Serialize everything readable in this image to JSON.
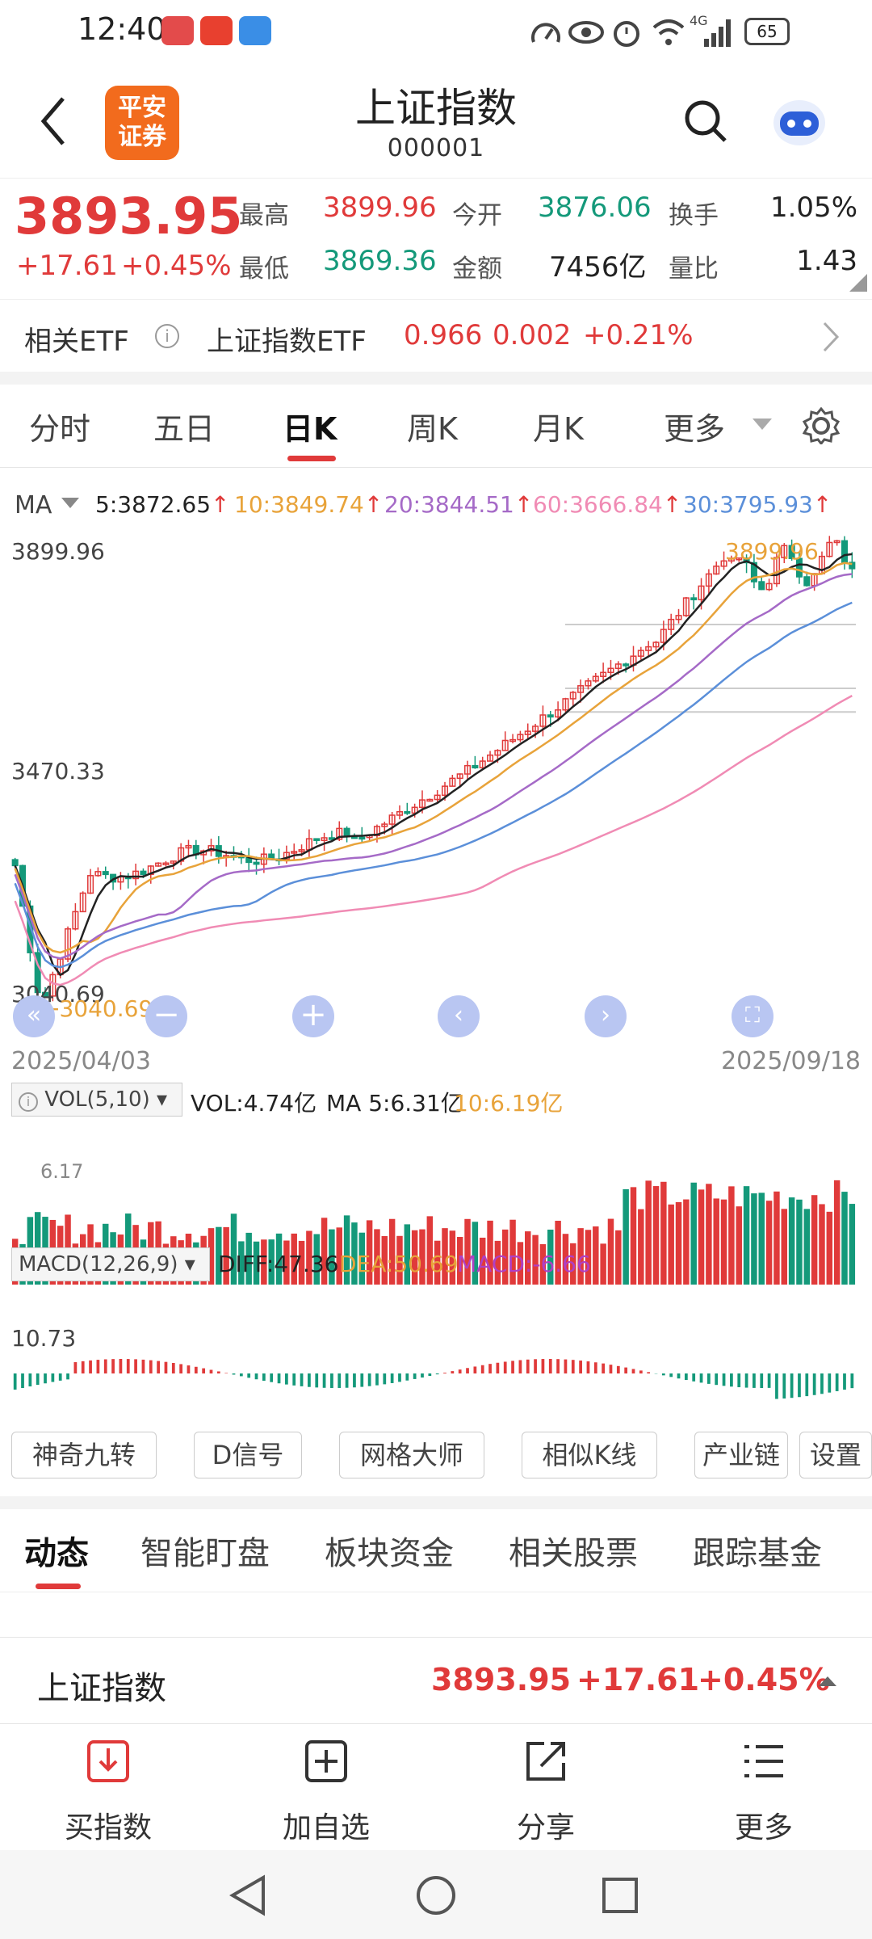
{
  "status": {
    "time": "12:40",
    "battery": "65",
    "network": "4G"
  },
  "header": {
    "title": "上证指数",
    "code": "000001",
    "logo_text": "平安\n证券",
    "logo_color": "#f26b1d"
  },
  "quote": {
    "price": "3893.95",
    "change": "+17.61",
    "change_pct": "+0.45%",
    "high_label": "最高",
    "high": "3899.96",
    "open_label": "今开",
    "open": "3876.06",
    "turnover_label": "换手",
    "turnover": "1.05%",
    "low_label": "最低",
    "low": "3869.36",
    "amount_label": "金额",
    "amount": "7456亿",
    "volratio_label": "量比",
    "volratio": "1.43"
  },
  "etf": {
    "label": "相关ETF",
    "name": "上证指数ETF",
    "price": "0.966",
    "change": "0.002",
    "pct": "+0.21%"
  },
  "period_tabs": [
    "分时",
    "五日",
    "日K",
    "周K",
    "月K",
    "更多"
  ],
  "active_tab": "日K",
  "ma": {
    "label": "MA",
    "ma5": "5:3872.65",
    "ma10": "10:3849.74",
    "ma20": "20:3844.51",
    "ma60": "60:3666.84",
    "ma30": "30:3795.93",
    "colors": {
      "ma5": "#222222",
      "ma10": "#e8a33a",
      "ma20": "#a56ac7",
      "ma60": "#f08bb4",
      "ma30": "#5b8fd9"
    }
  },
  "chart_data": {
    "type": "candlestick",
    "x_range": [
      "2025/04/03",
      "2025/09/18"
    ],
    "high_label": "3899.96",
    "mid_label": "3470.33",
    "low_label": "3040.69",
    "high_marker": "3899.96",
    "low_marker": "3040.69",
    "ylim": [
      3040.69,
      3899.96
    ]
  },
  "dates": {
    "start": "2025/04/03",
    "end": "2025/09/18"
  },
  "vol": {
    "label": "VOL(5,10)",
    "vol": "VOL:4.74亿",
    "ma5": "MA 5:6.31亿",
    "ma10": "10:6.19亿",
    "axis": "6.17"
  },
  "macd": {
    "label": "MACD(12,26,9)",
    "diff": "DIFF:47.36",
    "dea": "DEA:50.69",
    "macd": "MACD:-6.66",
    "axis": "10.73"
  },
  "tools": [
    "神奇九转",
    "D信号",
    "网格大师",
    "相似K线",
    "产业链",
    "设置"
  ],
  "bottom_tabs": [
    "动态",
    "智能盯盘",
    "板块资金",
    "相关股票",
    "跟踪基金"
  ],
  "summary": {
    "name": "上证指数",
    "price": "3893.95",
    "change": "+17.61",
    "pct": "+0.45%"
  },
  "nav": [
    {
      "label": "买指数",
      "icon": "download-icon"
    },
    {
      "label": "加自选",
      "icon": "add-watch-icon"
    },
    {
      "label": "分享",
      "icon": "share-icon"
    },
    {
      "label": "更多",
      "icon": "menu-icon"
    }
  ]
}
